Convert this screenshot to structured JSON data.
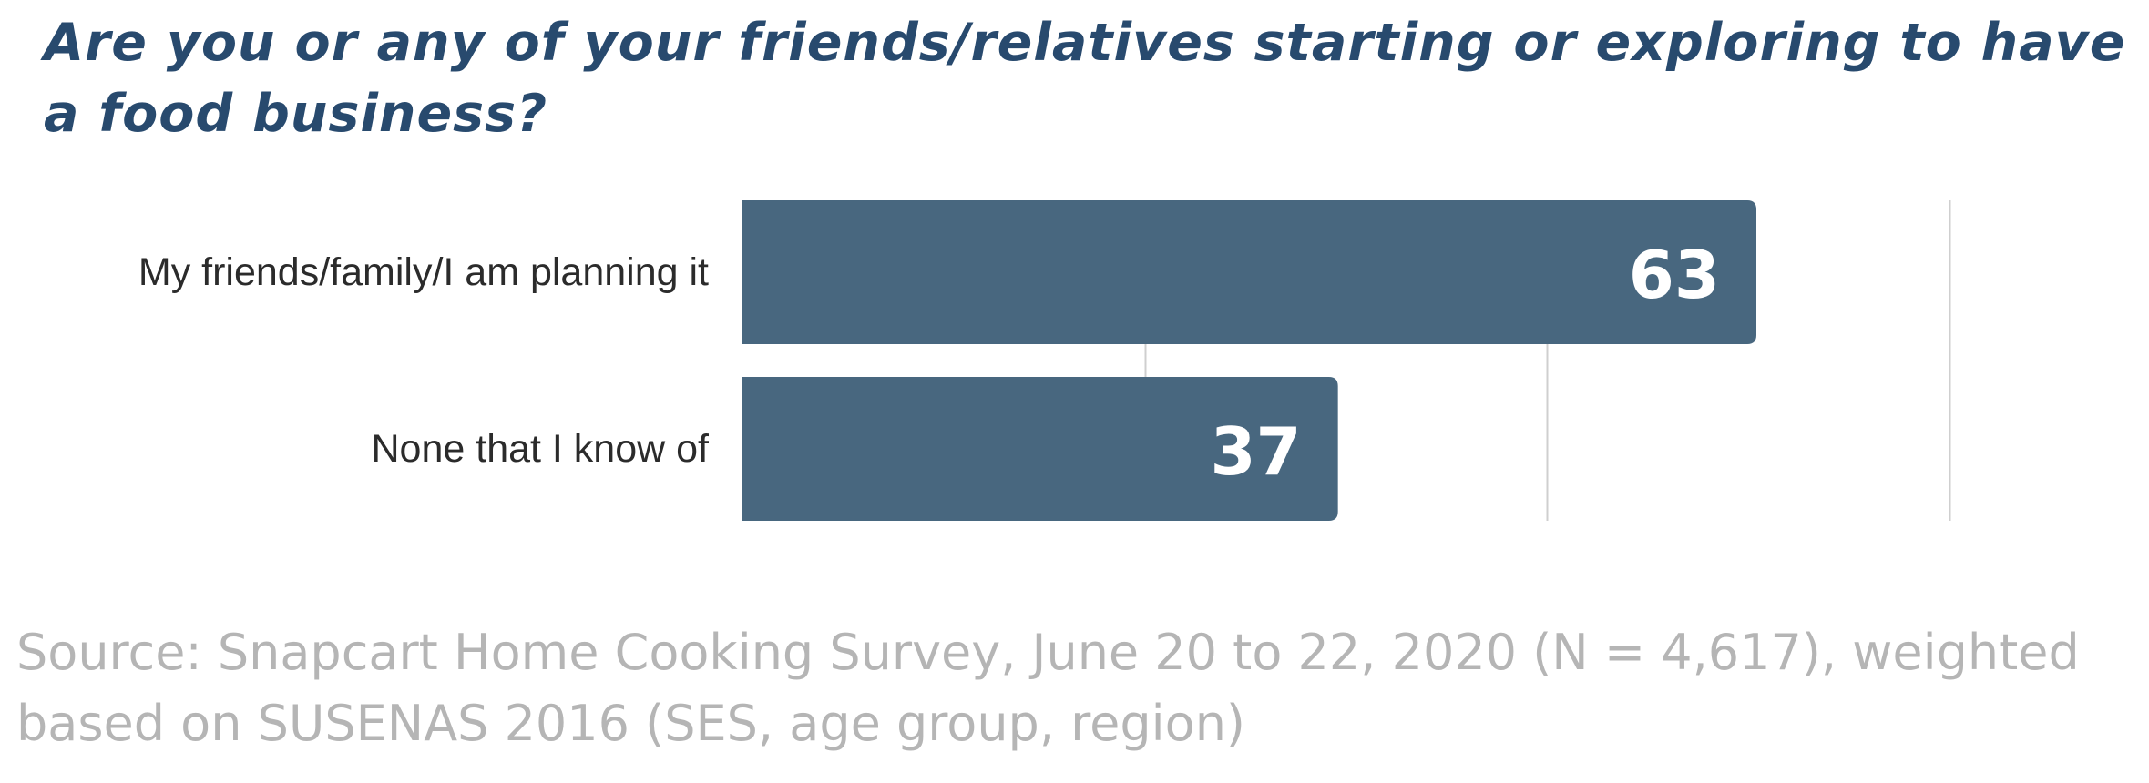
{
  "colors": {
    "title": "#284a6e",
    "bar": "#48677f",
    "bar_label": "#ffffff",
    "category_label": "#2b2b2b",
    "gridline": "#cfcfcf",
    "source": "#b5b5b5"
  },
  "title": "Are you or any of your friends/relatives starting or exploring to have a food business?",
  "chart_data": {
    "type": "bar",
    "orientation": "horizontal",
    "title": "Are you or any of your friends/relatives starting or exploring to have a food business?",
    "categories": [
      "My friends/family/I am planning it",
      "None that I know of"
    ],
    "values": [
      63,
      37
    ],
    "data_labels": [
      "63",
      "37"
    ],
    "xlim": [
      0,
      75
    ],
    "grid": true,
    "legend": "none"
  },
  "source": "Source: Snapcart Home Cooking Survey, June 20 to 22, 2020 (N = 4,617), weighted based on SUSENAS 2016 (SES, age group, region)"
}
